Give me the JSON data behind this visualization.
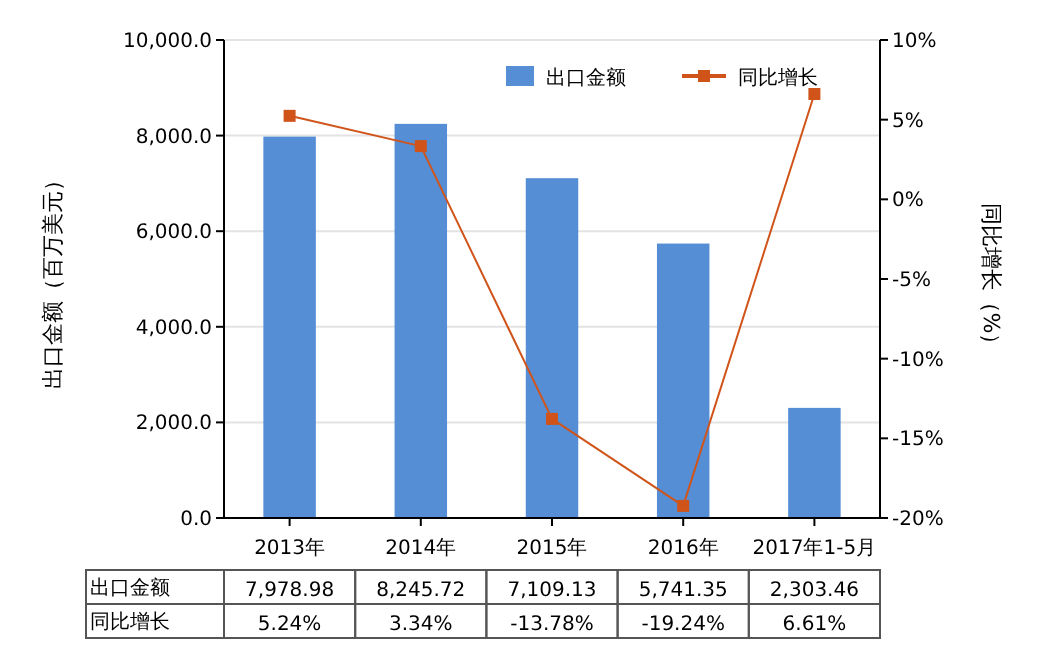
{
  "chart_data": {
    "type": "bar",
    "categories": [
      "2013年",
      "2014年",
      "2015年",
      "2016年",
      "2017年1-5月"
    ],
    "ylabel": "出口金额（百万美元）",
    "y2label": "同比增长（%）",
    "ylim": [
      0,
      10000
    ],
    "yticks": [
      {
        "value": 0,
        "label": "0.0"
      },
      {
        "value": 2000,
        "label": "2,000.0"
      },
      {
        "value": 4000,
        "label": "4,000.0"
      },
      {
        "value": 6000,
        "label": "6,000.0"
      },
      {
        "value": 8000,
        "label": "8,000.0"
      },
      {
        "value": 10000,
        "label": "10,000.0"
      }
    ],
    "y2lim": [
      -20,
      10
    ],
    "y2ticks": [
      {
        "value": -20,
        "label": "-20%"
      },
      {
        "value": -15,
        "label": "-15%"
      },
      {
        "value": -10,
        "label": "-10%"
      },
      {
        "value": -5,
        "label": "-5%"
      },
      {
        "value": 0,
        "label": "0%"
      },
      {
        "value": 5,
        "label": "5%"
      },
      {
        "value": 10,
        "label": "10%"
      }
    ],
    "grid": "y",
    "legend": "top right",
    "series": [
      {
        "name": "出口金额",
        "color": "#558ed5",
        "values": [
          7978.98,
          8245.72,
          7109.13,
          5741.35,
          2303.46
        ],
        "value_labels": [
          "7,978.98",
          "8,245.72",
          "7,109.13",
          "5,741.35",
          "2,303.46"
        ]
      },
      {
        "name": "同比增长",
        "type": "line",
        "axis": "y2",
        "marker": "square",
        "color": "#d0541a",
        "values": [
          5.24,
          3.34,
          -13.78,
          -19.24,
          6.61
        ],
        "value_labels": [
          "5.24%",
          "3.34%",
          "-13.78%",
          "-19.24%",
          "6.61%"
        ]
      }
    ]
  }
}
